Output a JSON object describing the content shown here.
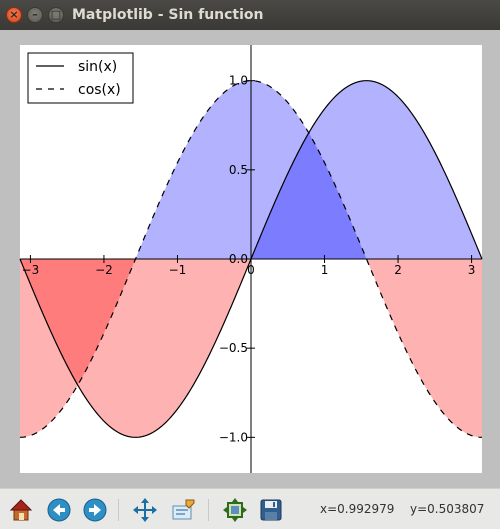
{
  "window": {
    "title": "Matplotlib - Sin function"
  },
  "chart_data": {
    "type": "line",
    "title": "",
    "xlabel": "",
    "ylabel": "",
    "xlim": [
      -3.14159,
      3.14159
    ],
    "ylim": [
      -1.2,
      1.2
    ],
    "xticks": [
      -3,
      -2,
      -1,
      0,
      1,
      2,
      3
    ],
    "xtick_labels": [
      "−3",
      "−2",
      "−1",
      "0",
      "1",
      "2",
      "3"
    ],
    "yticks": [
      -1.0,
      -0.5,
      0.0,
      0.5,
      1.0
    ],
    "ytick_labels": [
      "−1.0",
      "−0.5",
      "0.0",
      "0.5",
      "1.0"
    ],
    "grid": false,
    "spines": "centered at origin",
    "legend_position": "top-left",
    "series": [
      {
        "name": "sin(x)",
        "function": "sin(x)",
        "linestyle": "solid",
        "color": "#000000"
      },
      {
        "name": "cos(x)",
        "function": "cos(x)",
        "linestyle": "dashed",
        "color": "#000000"
      }
    ],
    "fills": {
      "above_zero_color": "#0000ff",
      "below_zero_color": "#ff0000",
      "alpha": 0.3
    }
  },
  "toolbar": {
    "icons": [
      "home-icon",
      "back-arrow-icon",
      "forward-arrow-icon",
      "pan-icon",
      "zoom-rect-icon",
      "subplots-configure-icon",
      "save-icon"
    ],
    "coords": {
      "x": "x=0.992979",
      "y": "y=0.503807"
    }
  }
}
